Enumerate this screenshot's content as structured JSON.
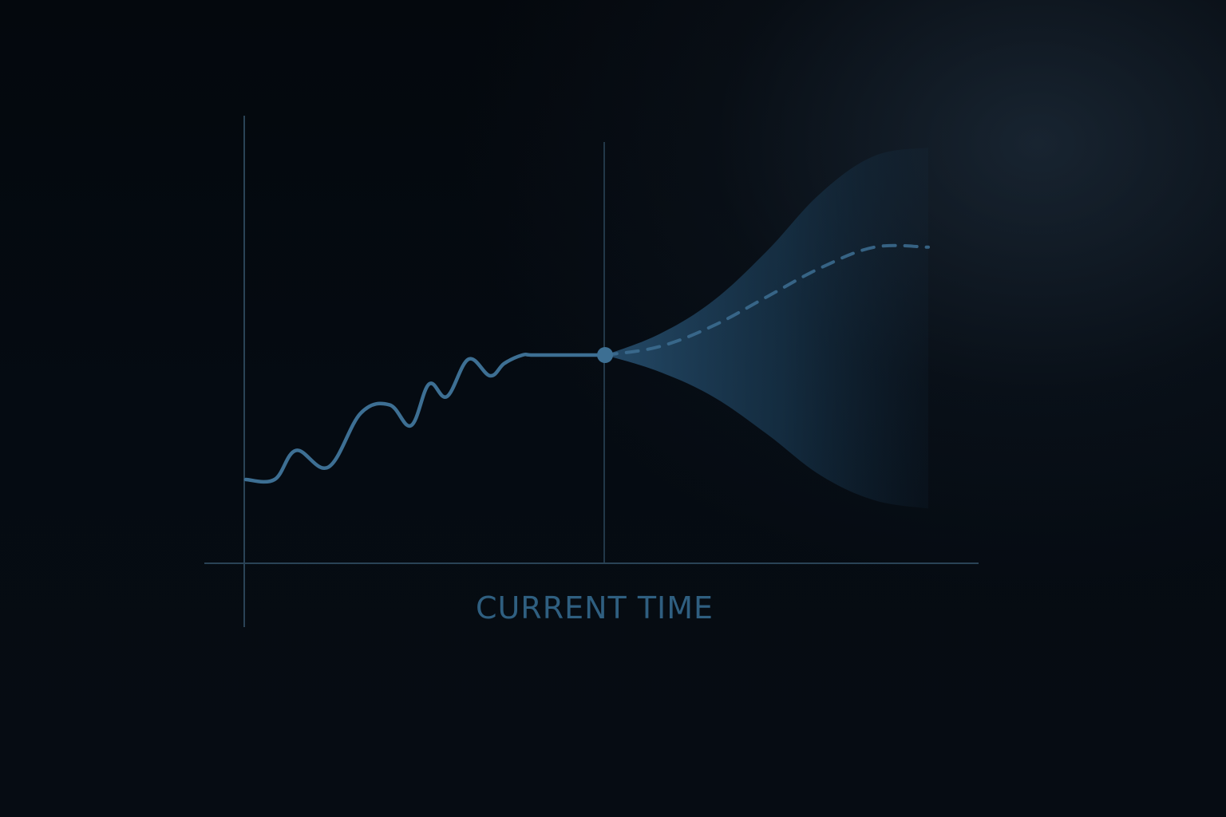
{
  "chart_data": {
    "type": "line",
    "title": "",
    "xlabel": "CURRENT TIME",
    "ylabel": "",
    "grid": false,
    "current_time_x": 10,
    "xlim": [
      0,
      20
    ],
    "ylim": [
      0,
      10
    ],
    "series": [
      {
        "kind": "observed",
        "style": "solid",
        "x": [
          0,
          0.8,
          1.4,
          2.3,
          3.2,
          4.0,
          4.6,
          5.1,
          5.6,
          6.2,
          6.8,
          7.2,
          7.7,
          8.0,
          9.2,
          10
        ],
        "y": [
          2.0,
          2.0,
          2.7,
          2.3,
          3.6,
          3.8,
          3.3,
          4.3,
          4.0,
          4.9,
          4.5,
          4.8,
          5.0,
          5.0,
          5.0,
          5.0
        ]
      },
      {
        "kind": "forecast",
        "style": "dashed",
        "x": [
          10,
          11.5,
          13,
          14.5,
          16,
          17.5,
          19
        ],
        "y": [
          5.0,
          5.2,
          5.7,
          6.4,
          7.1,
          7.6,
          7.6
        ]
      }
    ],
    "uncertainty_band": {
      "x": [
        10,
        11.5,
        13,
        14.5,
        16,
        17.5,
        19
      ],
      "lower": [
        5.0,
        4.6,
        4.0,
        3.1,
        2.1,
        1.5,
        1.3
      ],
      "upper": [
        5.0,
        5.5,
        6.3,
        7.5,
        8.9,
        9.8,
        10.0
      ]
    },
    "colors": {
      "line": "#3d6f93",
      "axis": "#2a4356",
      "band": "#1d3f59",
      "label": "#2f5f80"
    }
  }
}
